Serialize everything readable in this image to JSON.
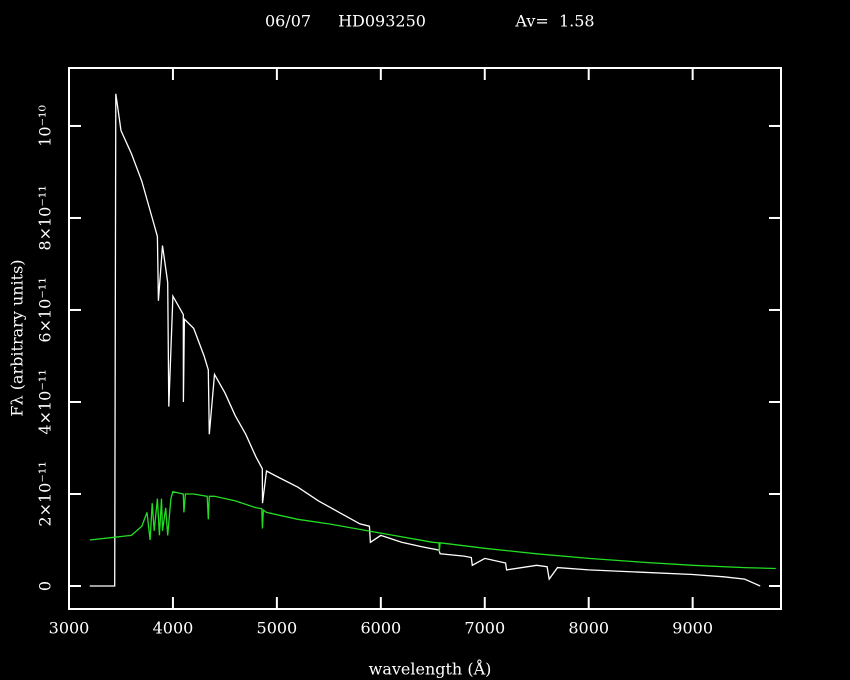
{
  "chart_data": {
    "type": "line",
    "title": [
      "06/07",
      "HD093250",
      "Av=  1.58"
    ],
    "xlabel": "wavelength (Å)",
    "ylabel": "Fλ (arbitrary units)",
    "xlim": [
      3000,
      9850
    ],
    "ylim": [
      -5e-12,
      1.126e-10
    ],
    "xticks": [
      3000,
      4000,
      5000,
      6000,
      7000,
      8000,
      9000
    ],
    "yticks": [
      0,
      {
        "value": 2e-11,
        "label": "2×10⁻¹¹"
      },
      {
        "value": 4e-11,
        "label": "4×10⁻¹¹"
      },
      {
        "value": 6e-11,
        "label": "6×10⁻¹¹"
      },
      {
        "value": 8e-11,
        "label": "8×10⁻¹¹"
      },
      {
        "value": 1e-10,
        "label": "10⁻¹⁰"
      }
    ],
    "series": [
      {
        "color": "#ffffff",
        "x": [
          3200,
          3440,
          3450,
          3500,
          3600,
          3700,
          3800,
          3850,
          3860,
          3900,
          3950,
          3960,
          4000,
          4100,
          4101,
          4110,
          4200,
          4300,
          4340,
          4350,
          4400,
          4500,
          4600,
          4700,
          4800,
          4860,
          4862,
          4900,
          5000,
          5200,
          5400,
          5600,
          5800,
          5890,
          5900,
          6000,
          6200,
          6400,
          6560,
          6570,
          6800,
          6870,
          6880,
          7000,
          7200,
          7210,
          7500,
          7600,
          7620,
          7700,
          8000,
          8500,
          9000,
          9300,
          9500,
          9600,
          9650
        ],
        "values": [
          0,
          0,
          1.07e-10,
          9.9e-11,
          9.4e-11,
          8.8e-11,
          8e-11,
          7.6e-11,
          6.2e-11,
          7.4e-11,
          6.6e-11,
          3.9e-11,
          6.3e-11,
          5.9e-11,
          4e-11,
          5.8e-11,
          5.6e-11,
          5e-11,
          4.7e-11,
          3.3e-11,
          4.6e-11,
          4.2e-11,
          3.7e-11,
          3.3e-11,
          2.8e-11,
          2.55e-11,
          1.8e-11,
          2.5e-11,
          2.38e-11,
          2.15e-11,
          1.85e-11,
          1.6e-11,
          1.35e-11,
          1.3e-11,
          9.5e-12,
          1.1e-11,
          9.5e-12,
          8.5e-12,
          7.8e-12,
          7e-12,
          6.5e-12,
          6.2e-12,
          4.5e-12,
          6e-12,
          5e-12,
          3.5e-12,
          4.5e-12,
          4.2e-12,
          1.5e-12,
          4e-12,
          3.5e-12,
          3e-12,
          2.5e-12,
          2e-12,
          1.5e-12,
          5e-13,
          0
        ]
      },
      {
        "color": "#22dd22",
        "x": [
          3200,
          3400,
          3600,
          3700,
          3750,
          3780,
          3800,
          3820,
          3850,
          3870,
          3890,
          3900,
          3930,
          3950,
          3980,
          4000,
          4100,
          4105,
          4120,
          4200,
          4330,
          4340,
          4350,
          4400,
          4600,
          4800,
          4855,
          4861,
          4870,
          4900,
          5200,
          5500,
          6000,
          6500,
          6560,
          6563,
          6570,
          6600,
          7000,
          7500,
          8000,
          8500,
          9000,
          9500,
          9800
        ],
        "values": [
          1e-11,
          1.05e-11,
          1.1e-11,
          1.3e-11,
          1.6e-11,
          1e-11,
          1.8e-11,
          1.2e-11,
          1.9e-11,
          1.1e-11,
          1.9e-11,
          1.2e-11,
          1.7e-11,
          1.1e-11,
          1.9e-11,
          2.05e-11,
          2e-11,
          1.6e-11,
          2e-11,
          2e-11,
          1.95e-11,
          1.45e-11,
          1.95e-11,
          1.95e-11,
          1.85e-11,
          1.7e-11,
          1.68e-11,
          1.25e-11,
          1.65e-11,
          1.6e-11,
          1.45e-11,
          1.35e-11,
          1.15e-11,
          9.5e-12,
          9.4e-12,
          7.5e-12,
          9.4e-12,
          9.3e-12,
          8.2e-12,
          7e-12,
          6e-12,
          5.2e-12,
          4.5e-12,
          4e-12,
          3.8e-12
        ]
      }
    ]
  }
}
